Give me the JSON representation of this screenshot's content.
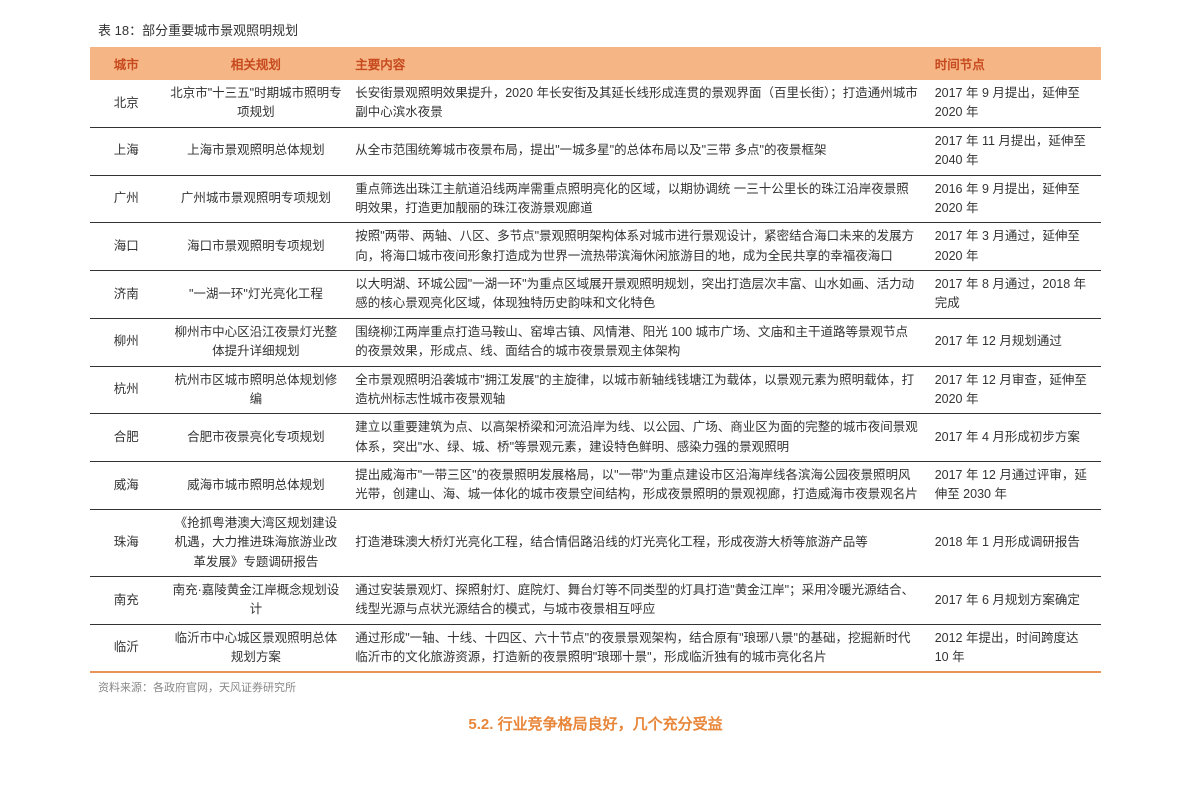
{
  "title": "表 18：部分重要城市景观照明规划",
  "columns": [
    "城市",
    "相关规划",
    "主要内容",
    "时间节点"
  ],
  "rows": [
    {
      "city": "北京",
      "plan": "北京市\"十三五\"时期城市照明专项规划",
      "content": "长安街景观照明效果提升，2020 年长安街及其延长线形成连贯的景观界面（百里长街）；打造通州城市副中心滨水夜景",
      "time": "2017 年 9 月提出，延伸至 2020 年"
    },
    {
      "city": "上海",
      "plan": "上海市景观照明总体规划",
      "content": "从全市范围统筹城市夜景布局，提出\"一城多星\"的总体布局以及\"三带 多点\"的夜景框架",
      "time": "2017 年 11 月提出，延伸至 2040 年"
    },
    {
      "city": "广州",
      "plan": "广州城市景观照明专项规划",
      "content": "重点筛选出珠江主航道沿线两岸需重点照明亮化的区域，以期协调统 一三十公里长的珠江沿岸夜景照明效果，打造更加靓丽的珠江夜游景观廊道",
      "time": "2016 年 9 月提出，延伸至 2020 年"
    },
    {
      "city": "海口",
      "plan": "海口市景观照明专项规划",
      "content": "按照\"两带、两轴、八区、多节点\"景观照明架构体系对城市进行景观设计，紧密结合海口未来的发展方向，将海口城市夜间形象打造成为世界一流热带滨海休闲旅游目的地，成为全民共享的幸福夜海口",
      "time": "2017 年 3 月通过，延伸至 2020 年"
    },
    {
      "city": "济南",
      "plan": "\"一湖一环\"灯光亮化工程",
      "content": "以大明湖、环城公园\"一湖一环\"为重点区域展开景观照明规划，突出打造层次丰富、山水如画、活力动感的核心景观亮化区域，体现独特历史韵味和文化特色",
      "time": "2017 年 8 月通过，2018 年完成"
    },
    {
      "city": "柳州",
      "plan": "柳州市中心区沿江夜景灯光整体提升详细规划",
      "content": "围绕柳江两岸重点打造马鞍山、窑埠古镇、风情港、阳光 100 城市广场、文庙和主干道路等景观节点的夜景效果，形成点、线、面结合的城市夜景景观主体架构",
      "time": "2017 年 12 月规划通过"
    },
    {
      "city": "杭州",
      "plan": "杭州市区城市照明总体规划修编",
      "content": "全市景观照明沿袭城市\"拥江发展\"的主旋律，以城市新轴线钱塘江为载体，以景观元素为照明载体，打造杭州标志性城市夜景观轴",
      "time": "2017 年 12 月审查，延伸至 2020 年"
    },
    {
      "city": "合肥",
      "plan": "合肥市夜景亮化专项规划",
      "content": "建立以重要建筑为点、以高架桥梁和河流沿岸为线、以公园、广场、商业区为面的完整的城市夜间景观体系，突出\"水、绿、城、桥\"等景观元素，建设特色鲜明、感染力强的景观照明",
      "time": "2017 年 4 月形成初步方案"
    },
    {
      "city": "威海",
      "plan": "威海市城市照明总体规划",
      "content": "提出威海市\"一带三区\"的夜景照明发展格局，以\"一带\"为重点建设市区沿海岸线各滨海公园夜景照明风光带，创建山、海、城一体化的城市夜景空间结构，形成夜景照明的景观视廊，打造威海市夜景观名片",
      "time": "2017 年 12 月通过评审，延伸至 2030 年"
    },
    {
      "city": "珠海",
      "plan": "《抢抓粤港澳大湾区规划建设机遇，大力推进珠海旅游业改革发展》专题调研报告",
      "content": "打造港珠澳大桥灯光亮化工程，结合情侣路沿线的灯光亮化工程，形成夜游大桥等旅游产品等",
      "time": "2018 年 1 月形成调研报告"
    },
    {
      "city": "南充",
      "plan": "南充·嘉陵黄金江岸概念规划设计",
      "content": "通过安装景观灯、探照射灯、庭院灯、舞台灯等不同类型的灯具打造\"黄金江岸\"；采用冷暖光源结合、线型光源与点状光源结合的模式，与城市夜景相互呼应",
      "time": "2017 年 6 月规划方案确定"
    },
    {
      "city": "临沂",
      "plan": "临沂市中心城区景观照明总体规划方案",
      "content": "通过形成\"一轴、十线、十四区、六十节点\"的夜景景观架构，结合原有\"琅琊八景\"的基础，挖掘新时代临沂市的文化旅游资源，打造新的夜景照明\"琅琊十景\"，形成临沂独有的城市亮化名片",
      "time": "2012 年提出，时间跨度达 10 年"
    }
  ],
  "source": "资料来源：各政府官网，天风证券研究所",
  "footer": "5.2. 行业竞争格局良好，几个充分受益"
}
